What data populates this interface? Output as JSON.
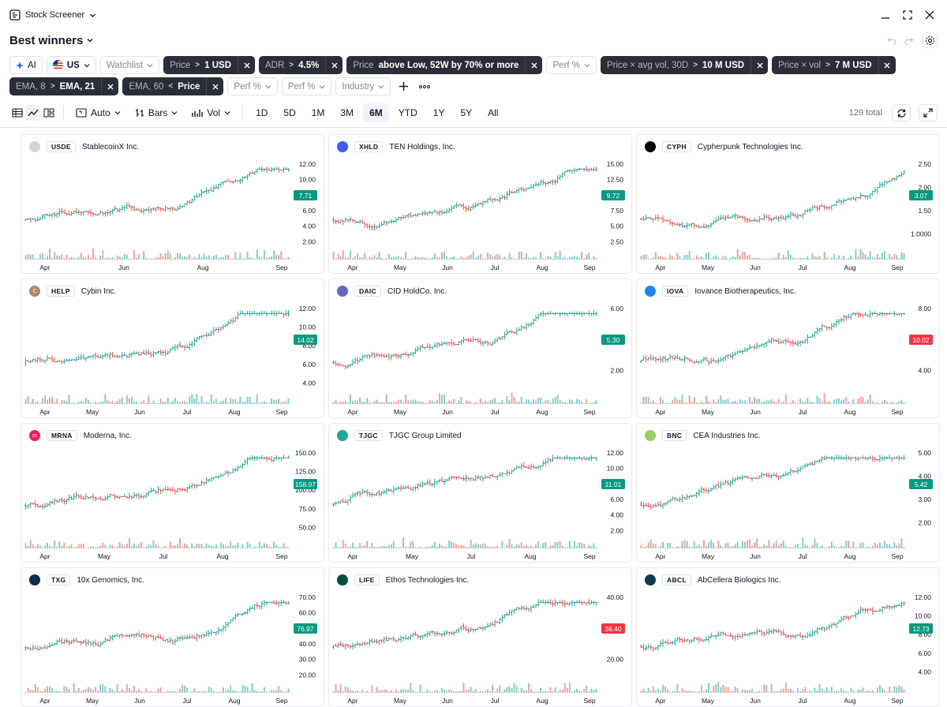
{
  "window": {
    "app_title": "Stock Screener"
  },
  "screen": {
    "title": "Best winners"
  },
  "filters": {
    "row1": [
      {
        "type": "light",
        "label": "AI",
        "icon": "sparkle-icon"
      },
      {
        "type": "light",
        "label": "US",
        "icon": "us-flag-icon",
        "dropdown": true
      },
      {
        "type": "lgray",
        "label": "Watchlist",
        "dropdown": true
      },
      {
        "type": "dark",
        "key": "Price",
        "op": ">",
        "value": "1 USD"
      },
      {
        "type": "dark",
        "key": "ADR",
        "op": ">",
        "value": "4.5%"
      },
      {
        "type": "dark",
        "key": "Price",
        "op": "",
        "value": "above Low, 52W by 70% or more"
      },
      {
        "type": "lgray",
        "label": "Perf %",
        "dropdown": true
      },
      {
        "type": "dark",
        "key": "Price × avg vol, 30D",
        "op": ">",
        "value": "10 M USD"
      },
      {
        "type": "dark",
        "key": "Price × vol",
        "op": ">",
        "value": "7 M USD"
      }
    ],
    "row2": [
      {
        "type": "dark",
        "key": "EMA, 8",
        "op": ">",
        "value": "EMA, 21"
      },
      {
        "type": "dark",
        "key": "EMA, 60",
        "op": "<",
        "value": "Price"
      },
      {
        "type": "lgray",
        "label": "Perf %",
        "dropdown": true
      },
      {
        "type": "lgray",
        "label": "Perf %",
        "dropdown": true
      },
      {
        "type": "lgray",
        "label": "Industry",
        "dropdown": true
      }
    ]
  },
  "toolbar": {
    "scale": "Auto",
    "chart_style": "Bars",
    "volume": "Vol",
    "ranges": [
      "1D",
      "5D",
      "1M",
      "3M",
      "6M",
      "YTD",
      "1Y",
      "5Y",
      "All"
    ],
    "selected_range": "6M",
    "total": "129 total"
  },
  "colors": {
    "up": "#26a69a",
    "down": "#ef5350",
    "up_tag": "#089981",
    "down_tag": "#f23645"
  },
  "cards": [
    {
      "ticker": "USDE",
      "name": "StablecoinX Inc.",
      "logo_color": "#d1d4dc",
      "logo_text": "",
      "price_tag": "7.71",
      "tag_dir": "up",
      "yticks": [
        "12.00",
        "10.00",
        "8.00",
        "6.00",
        "4.00",
        "2.00"
      ],
      "months": [
        "Apr",
        "Jun",
        "Aug",
        "Sep"
      ]
    },
    {
      "ticker": "XHLD",
      "name": "TEN Holdings, Inc.",
      "logo_color": "#3d5afe",
      "logo_text": "",
      "price_tag": "9.72",
      "tag_dir": "up",
      "yticks": [
        "15.00",
        "12.50",
        "10.00",
        "7.50",
        "5.00",
        "2.50"
      ],
      "months": [
        "Apr",
        "May",
        "Jun",
        "Jul",
        "Aug",
        "Sep"
      ]
    },
    {
      "ticker": "CYPH",
      "name": "Cypherpunk Technologies Inc.",
      "logo_color": "#000000",
      "logo_text": "",
      "price_tag": "3.07",
      "tag_dir": "up",
      "yticks": [
        "2.50",
        "2.00",
        "1.50",
        "1.0000"
      ],
      "months": [
        "Apr",
        "May",
        "Jun",
        "Jul",
        "Aug",
        "Sep"
      ]
    },
    {
      "ticker": "HELP",
      "name": "Cybin Inc.",
      "logo_color": "#b08968",
      "logo_text": "C",
      "price_tag": "14.02",
      "tag_dir": "up",
      "yticks": [
        "12.00",
        "10.00",
        "8.00",
        "6.00",
        "4.00"
      ],
      "months": [
        "Apr",
        "May",
        "Jun",
        "Jul",
        "Aug",
        "Sep"
      ]
    },
    {
      "ticker": "DAIC",
      "name": "CID HoldCo, Inc.",
      "logo_color": "#5c6bc0",
      "logo_text": "",
      "price_tag": "5.30",
      "tag_dir": "up",
      "yticks": [
        "6.00",
        "4.00",
        "2.00"
      ],
      "months": [
        "Apr",
        "May",
        "Jun",
        "Jul",
        "Aug",
        "Sep"
      ]
    },
    {
      "ticker": "IOVA",
      "name": "Iovance Biotherapeutics, Inc.",
      "logo_color": "#1e88e5",
      "logo_text": "",
      "price_tag": "10.02",
      "tag_dir": "down",
      "yticks": [
        "8.00",
        "6.00",
        "4.00"
      ],
      "months": [
        "Apr",
        "May",
        "Jun",
        "Jul",
        "Aug",
        "Sep"
      ]
    },
    {
      "ticker": "MRNA",
      "name": "Moderna, Inc.",
      "logo_color": "#e91e63",
      "logo_text": "m",
      "price_tag": "158.07",
      "tag_dir": "up",
      "yticks": [
        "150.00",
        "125.00",
        "100.00",
        "75.00",
        "50.00"
      ],
      "months": [
        "Apr",
        "May",
        "Jul",
        "Aug",
        "Sep"
      ]
    },
    {
      "ticker": "TJGC",
      "name": "TJGC Group Limited",
      "logo_color": "#26a69a",
      "logo_text": "",
      "price_tag": "11.01",
      "tag_dir": "up",
      "yticks": [
        "12.00",
        "10.00",
        "8.00",
        "6.00",
        "4.00",
        "2.00"
      ],
      "months": [
        "Apr",
        "May",
        "Jul",
        "Aug",
        "Sep"
      ]
    },
    {
      "ticker": "BNC",
      "name": "CEA Industries Inc.",
      "logo_color": "#9ccc65",
      "logo_text": "",
      "price_tag": "5.42",
      "tag_dir": "up",
      "yticks": [
        "5.00",
        "4.00",
        "3.00",
        "2.00"
      ],
      "months": [
        "Apr",
        "May",
        "Jun",
        "Jul",
        "Aug",
        "Sep"
      ]
    },
    {
      "ticker": "TXG",
      "name": "10x Genomics, Inc.",
      "logo_color": "#0d2b4e",
      "logo_text": "",
      "price_tag": "76.97",
      "tag_dir": "up",
      "yticks": [
        "70.00",
        "60.00",
        "50.00",
        "40.00",
        "30.00",
        "20.00"
      ],
      "months": [
        "Apr",
        "May",
        "Jun",
        "Jul",
        "Aug",
        "Sep"
      ]
    },
    {
      "ticker": "LIFE",
      "name": "Ethos Technologies Inc.",
      "logo_color": "#004d40",
      "logo_text": "",
      "price_tag": "36.40",
      "tag_dir": "down",
      "yticks": [
        "40.00",
        "30.00",
        "20.00"
      ],
      "months": [
        "Apr",
        "May",
        "Jun",
        "Jul",
        "Aug",
        "Sep"
      ]
    },
    {
      "ticker": "ABCL",
      "name": "AbCellera Biologics Inc.",
      "logo_color": "#0b3d4f",
      "logo_text": "",
      "price_tag": "12.73",
      "tag_dir": "up",
      "yticks": [
        "12.00",
        "10.00",
        "8.00",
        "6.00",
        "4.00"
      ],
      "months": [
        "Apr",
        "May",
        "Jun",
        "Jul",
        "Aug",
        "Sep"
      ]
    }
  ]
}
